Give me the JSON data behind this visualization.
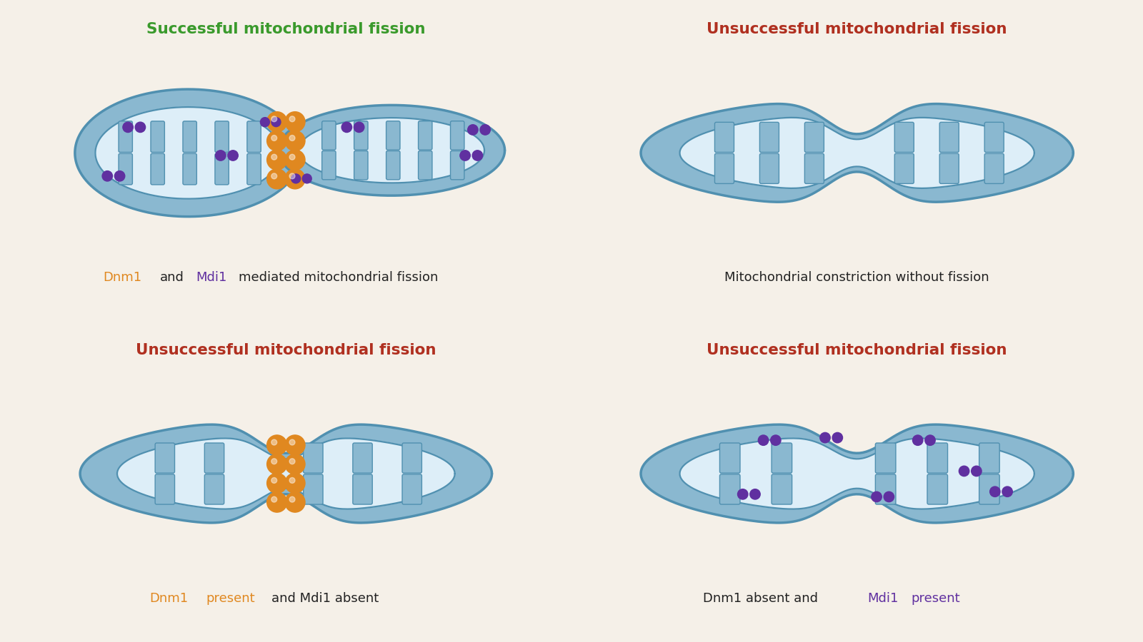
{
  "bg_color": "#f5f0e8",
  "panel_bg_colors": [
    "#eef5e8",
    "#f5efe8",
    "#f5efe8",
    "#f5efe8"
  ],
  "panel_border_colors": [
    "#7ab648",
    "#b03020",
    "#b03020",
    "#b03020"
  ],
  "panel_titles": [
    "Successful mitochondrial fission",
    "Unsuccessful mitochondrial fission",
    "Unsuccessful mitochondrial fission",
    "Unsuccessful mitochondrial fission"
  ],
  "title_colors": [
    "#3a9a2c",
    "#b03020",
    "#b03020",
    "#b03020"
  ],
  "mito_fill": "#8ab8d0",
  "mito_inner_fill": "#ddeef8",
  "mito_stroke": "#5090b0",
  "crista_fill": "#8ab8d0",
  "crista_stroke": "#5090b0",
  "orange_color": "#e08820",
  "purple_color": "#6030a0",
  "text_color": "#222222",
  "orange_text": "#e08820",
  "purple_text": "#6030a0"
}
